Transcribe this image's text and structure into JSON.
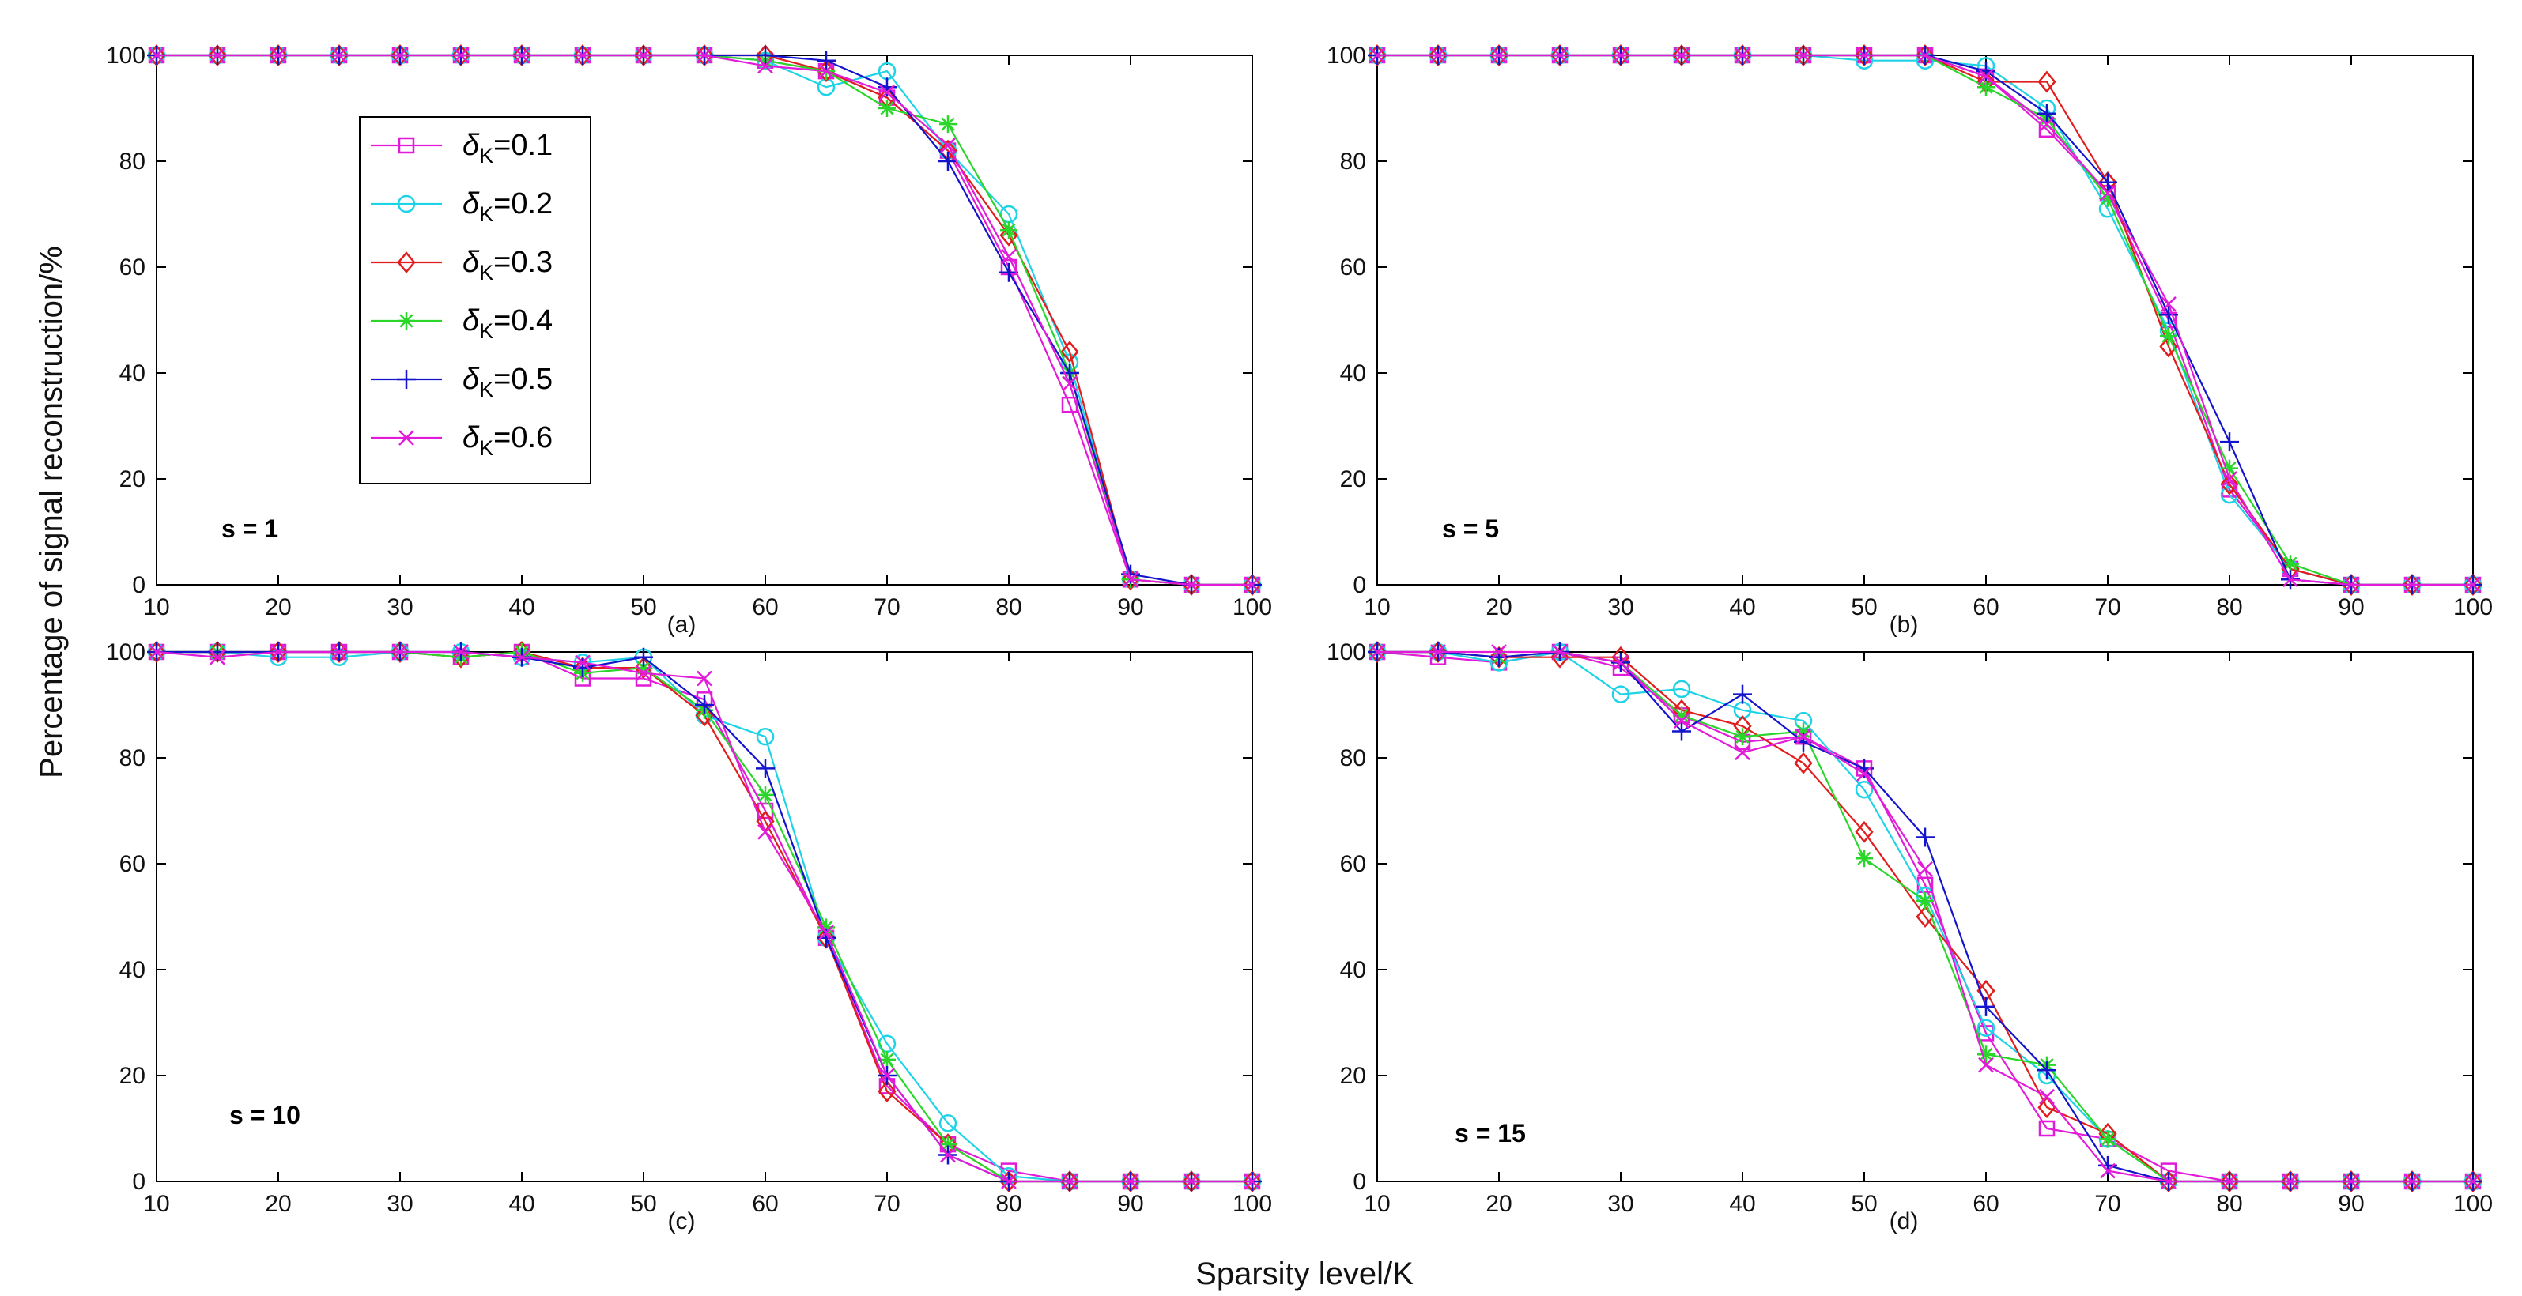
{
  "figure": {
    "ylabel": "Percentage of signal reconstruction/%",
    "xlabel": "Sparsity level/K"
  },
  "colors": {
    "magenta": "#E21BD9",
    "cyan": "#1FD3E6",
    "red": "#E21D1D",
    "green": "#2BD62B",
    "blue": "#1414CC"
  },
  "legend": {
    "items": [
      {
        "sym": "δ",
        "sub": "K",
        "rest": "=0.1",
        "color": "#E21BD9",
        "marker": "square"
      },
      {
        "sym": "δ",
        "sub": "K",
        "rest": "=0.2",
        "color": "#1FD3E6",
        "marker": "circle"
      },
      {
        "sym": "δ",
        "sub": "K",
        "rest": "=0.3",
        "color": "#E21D1D",
        "marker": "diamond"
      },
      {
        "sym": "δ",
        "sub": "K",
        "rest": "=0.4",
        "color": "#2BD62B",
        "marker": "star"
      },
      {
        "sym": "δ",
        "sub": "K",
        "rest": "=0.5",
        "color": "#1414CC",
        "marker": "plus"
      },
      {
        "sym": "δ",
        "sub": "K",
        "rest": "=0.6",
        "color": "#E21BD9",
        "marker": "x"
      }
    ]
  },
  "chart_data": [
    {
      "type": "line",
      "panel_label": "(a)",
      "annotation": "s = 1",
      "x": [
        10,
        15,
        20,
        25,
        30,
        35,
        40,
        45,
        50,
        55,
        60,
        65,
        70,
        75,
        80,
        85,
        90,
        95,
        100
      ],
      "xlim": [
        10,
        100
      ],
      "ylim": [
        0,
        100
      ],
      "xticks": [
        10,
        20,
        30,
        40,
        50,
        60,
        70,
        80,
        90,
        100
      ],
      "yticks": [
        0,
        20,
        40,
        60,
        80,
        100
      ],
      "xtick_labels": [
        "10",
        "20",
        "30",
        "40",
        "50",
        "60",
        "70",
        "80",
        "90",
        "100"
      ],
      "ytick_labels": [
        "0",
        "20",
        "40",
        "60",
        "80",
        "100"
      ],
      "series": [
        {
          "name": "δK=0.1",
          "values": [
            100,
            100,
            100,
            100,
            100,
            100,
            100,
            100,
            100,
            100,
            99,
            97,
            92,
            82,
            60,
            34,
            1,
            0,
            0
          ]
        },
        {
          "name": "δK=0.2",
          "values": [
            100,
            100,
            100,
            100,
            100,
            100,
            100,
            100,
            100,
            100,
            99,
            94,
            97,
            82,
            70,
            42,
            1,
            0,
            0
          ]
        },
        {
          "name": "δK=0.3",
          "values": [
            100,
            100,
            100,
            100,
            100,
            100,
            100,
            100,
            100,
            100,
            100,
            97,
            92,
            82,
            66,
            44,
            1,
            0,
            0
          ]
        },
        {
          "name": "δK=0.4",
          "values": [
            100,
            100,
            100,
            100,
            100,
            100,
            100,
            100,
            100,
            100,
            99,
            97,
            90,
            87,
            67,
            40,
            1,
            0,
            0
          ]
        },
        {
          "name": "δK=0.5",
          "values": [
            100,
            100,
            100,
            100,
            100,
            100,
            100,
            100,
            100,
            100,
            100,
            99,
            94,
            80,
            59,
            40,
            2,
            0,
            0
          ]
        },
        {
          "name": "δK=0.6",
          "values": [
            100,
            100,
            100,
            100,
            100,
            100,
            100,
            100,
            100,
            100,
            98,
            97,
            93,
            83,
            62,
            38,
            1,
            0,
            0
          ]
        }
      ]
    },
    {
      "type": "line",
      "panel_label": "(b)",
      "annotation": "s = 5",
      "x": [
        10,
        15,
        20,
        25,
        30,
        35,
        40,
        45,
        50,
        55,
        60,
        65,
        70,
        75,
        80,
        85,
        90,
        95,
        100
      ],
      "xlim": [
        10,
        100
      ],
      "ylim": [
        0,
        100
      ],
      "xticks": [
        10,
        20,
        30,
        40,
        50,
        60,
        70,
        80,
        90,
        100
      ],
      "yticks": [
        0,
        20,
        40,
        60,
        80,
        100
      ],
      "xtick_labels": [
        "10",
        "20",
        "30",
        "40",
        "50",
        "60",
        "70",
        "80",
        "90",
        "100"
      ],
      "ytick_labels": [
        "0",
        "20",
        "40",
        "60",
        "80",
        "100"
      ],
      "series": [
        {
          "name": "δK=0.1",
          "values": [
            100,
            100,
            100,
            100,
            100,
            100,
            100,
            100,
            100,
            100,
            96,
            86,
            74,
            50,
            18,
            3,
            0,
            0,
            0
          ]
        },
        {
          "name": "δK=0.2",
          "values": [
            100,
            100,
            100,
            100,
            100,
            100,
            100,
            100,
            99,
            99,
            98,
            90,
            71,
            48,
            17,
            3,
            0,
            0,
            0
          ]
        },
        {
          "name": "δK=0.3",
          "values": [
            100,
            100,
            100,
            100,
            100,
            100,
            100,
            100,
            100,
            100,
            95,
            95,
            76,
            45,
            19,
            3,
            0,
            0,
            0
          ]
        },
        {
          "name": "δK=0.4",
          "values": [
            100,
            100,
            100,
            100,
            100,
            100,
            100,
            100,
            100,
            100,
            94,
            88,
            73,
            47,
            22,
            4,
            0,
            0,
            0
          ]
        },
        {
          "name": "δK=0.5",
          "values": [
            100,
            100,
            100,
            100,
            100,
            100,
            100,
            100,
            100,
            100,
            97,
            89,
            76,
            51,
            27,
            1,
            0,
            0,
            0
          ]
        },
        {
          "name": "δK=0.6",
          "values": [
            100,
            100,
            100,
            100,
            100,
            100,
            100,
            100,
            100,
            100,
            96,
            87,
            74,
            53,
            20,
            1,
            0,
            0,
            0
          ]
        }
      ]
    },
    {
      "type": "line",
      "panel_label": "(c)",
      "annotation": "s = 10",
      "x": [
        10,
        15,
        20,
        25,
        30,
        35,
        40,
        45,
        50,
        55,
        60,
        65,
        70,
        75,
        80,
        85,
        90,
        95,
        100
      ],
      "xlim": [
        10,
        100
      ],
      "ylim": [
        0,
        100
      ],
      "xticks": [
        10,
        20,
        30,
        40,
        50,
        60,
        70,
        80,
        90,
        100
      ],
      "yticks": [
        0,
        20,
        40,
        60,
        80,
        100
      ],
      "xtick_labels": [
        "10",
        "20",
        "30",
        "40",
        "50",
        "60",
        "70",
        "80",
        "90",
        "100"
      ],
      "ytick_labels": [
        "0",
        "20",
        "40",
        "60",
        "80",
        "100"
      ],
      "series": [
        {
          "name": "δK=0.1",
          "values": [
            100,
            100,
            100,
            100,
            100,
            99,
            100,
            95,
            95,
            91,
            70,
            46,
            18,
            7,
            2,
            0,
            0,
            0,
            0
          ]
        },
        {
          "name": "δK=0.2",
          "values": [
            100,
            100,
            99,
            99,
            100,
            100,
            99,
            98,
            99,
            88,
            84,
            46,
            26,
            11,
            1,
            0,
            0,
            0,
            0
          ]
        },
        {
          "name": "δK=0.3",
          "values": [
            100,
            100,
            100,
            100,
            100,
            99,
            100,
            97,
            97,
            88,
            68,
            46,
            17,
            7,
            0,
            0,
            0,
            0,
            0
          ]
        },
        {
          "name": "δK=0.4",
          "values": [
            100,
            100,
            100,
            100,
            100,
            99,
            100,
            96,
            97,
            89,
            73,
            48,
            23,
            7,
            0,
            0,
            0,
            0,
            0
          ]
        },
        {
          "name": "δK=0.5",
          "values": [
            100,
            100,
            100,
            100,
            100,
            100,
            99,
            97,
            99,
            90,
            78,
            46,
            20,
            5,
            0,
            0,
            0,
            0,
            0
          ]
        },
        {
          "name": "δK=0.6",
          "values": [
            100,
            99,
            100,
            100,
            100,
            100,
            99,
            98,
            96,
            95,
            66,
            47,
            20,
            5,
            0,
            0,
            0,
            0,
            0
          ]
        }
      ]
    },
    {
      "type": "line",
      "panel_label": "(d)",
      "annotation": "s = 15",
      "x": [
        10,
        15,
        20,
        25,
        30,
        35,
        40,
        45,
        50,
        55,
        60,
        65,
        70,
        75,
        80,
        85,
        90,
        95,
        100
      ],
      "xlim": [
        10,
        100
      ],
      "ylim": [
        0,
        100
      ],
      "xticks": [
        10,
        20,
        30,
        40,
        50,
        60,
        70,
        80,
        90,
        100
      ],
      "yticks": [
        0,
        20,
        40,
        60,
        80,
        100
      ],
      "xtick_labels": [
        "10",
        "20",
        "30",
        "40",
        "50",
        "60",
        "70",
        "80",
        "90",
        "100"
      ],
      "ytick_labels": [
        "0",
        "20",
        "40",
        "60",
        "80",
        "100"
      ],
      "series": [
        {
          "name": "δK=0.1",
          "values": [
            100,
            99,
            98,
            100,
            97,
            88,
            83,
            84,
            78,
            56,
            28,
            10,
            8,
            2,
            0,
            0,
            0,
            0,
            0
          ]
        },
        {
          "name": "δK=0.2",
          "values": [
            100,
            100,
            98,
            100,
            92,
            93,
            89,
            87,
            74,
            54,
            29,
            20,
            8,
            0,
            0,
            0,
            0,
            0,
            0
          ]
        },
        {
          "name": "δK=0.3",
          "values": [
            100,
            100,
            99,
            99,
            99,
            89,
            86,
            79,
            66,
            50,
            36,
            14,
            9,
            0,
            0,
            0,
            0,
            0,
            0
          ]
        },
        {
          "name": "δK=0.4",
          "values": [
            100,
            100,
            99,
            100,
            98,
            88,
            84,
            85,
            61,
            53,
            24,
            22,
            8,
            0,
            0,
            0,
            0,
            0,
            0
          ]
        },
        {
          "name": "δK=0.5",
          "values": [
            100,
            100,
            99,
            100,
            98,
            85,
            92,
            83,
            78,
            65,
            33,
            21,
            3,
            0,
            0,
            0,
            0,
            0,
            0
          ]
        },
        {
          "name": "δK=0.6",
          "values": [
            100,
            100,
            100,
            100,
            98,
            87,
            81,
            84,
            77,
            59,
            22,
            16,
            2,
            0,
            0,
            0,
            0,
            0,
            0
          ]
        }
      ]
    }
  ]
}
